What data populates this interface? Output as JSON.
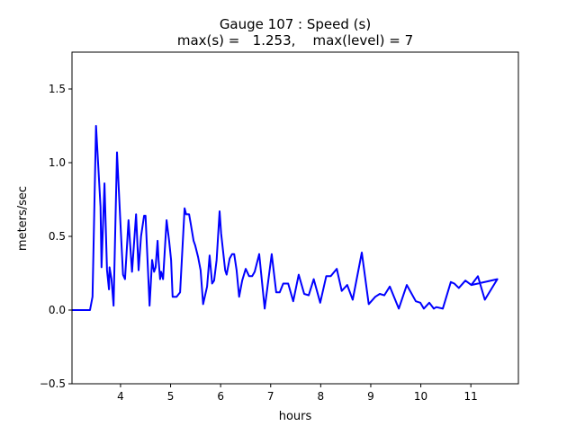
{
  "chart_data": {
    "type": "line",
    "title_line1": "Gauge 107 : Speed (s)",
    "title_line2": "max(s) =   1.253,    max(level) = 7",
    "xlabel": "hours",
    "ylabel": "meters/sec",
    "xlim": [
      3.03,
      11.95
    ],
    "ylim": [
      -0.5,
      1.75
    ],
    "xticks": [
      4,
      5,
      6,
      7,
      8,
      9,
      10,
      11
    ],
    "xtick_labels": [
      "4",
      "5",
      "6",
      "7",
      "8",
      "9",
      "10",
      "11"
    ],
    "yticks": [
      -0.5,
      0.0,
      0.5,
      1.0,
      1.5
    ],
    "ytick_labels": [
      "−0.5",
      "0.0",
      "0.5",
      "1.0",
      "1.5"
    ],
    "grid": false,
    "series": [
      {
        "name": "speed",
        "color": "#0000ff",
        "x": [
          3.03,
          3.39,
          3.44,
          3.51,
          3.6,
          3.62,
          3.68,
          3.73,
          3.77,
          3.78,
          3.82,
          3.86,
          3.93,
          4.0,
          4.05,
          4.09,
          4.16,
          4.23,
          4.31,
          4.36,
          4.41,
          4.47,
          4.5,
          4.58,
          4.63,
          4.67,
          4.7,
          4.74,
          4.76,
          4.79,
          4.81,
          4.85,
          4.92,
          4.97,
          5.01,
          5.04,
          5.12,
          5.19,
          5.28,
          5.31,
          5.37,
          5.4,
          5.46,
          5.49,
          5.55,
          5.6,
          5.65,
          5.73,
          5.78,
          5.83,
          5.87,
          5.92,
          5.98,
          6.01,
          6.09,
          6.12,
          6.18,
          6.23,
          6.27,
          6.32,
          6.37,
          6.43,
          6.5,
          6.57,
          6.63,
          6.68,
          6.77,
          6.88,
          7.02,
          7.11,
          7.18,
          7.25,
          7.35,
          7.45,
          7.56,
          7.67,
          7.76,
          7.86,
          7.99,
          8.11,
          8.2,
          8.32,
          8.42,
          8.53,
          8.64,
          8.82,
          8.96,
          9.09,
          9.18,
          9.27,
          9.38,
          9.56,
          9.72,
          9.9,
          9.99,
          10.06,
          10.17,
          10.26,
          10.31,
          10.44,
          10.6,
          10.67,
          10.76,
          10.89,
          11.01,
          11.14,
          11.28,
          11.53,
          11.01
        ],
        "y": [
          0,
          0,
          0.09,
          1.25,
          0.7,
          0.29,
          0.86,
          0.27,
          0.14,
          0.29,
          0.21,
          0.03,
          1.07,
          0.58,
          0.24,
          0.21,
          0.61,
          0.26,
          0.65,
          0.27,
          0.5,
          0.64,
          0.64,
          0.03,
          0.34,
          0.26,
          0.29,
          0.47,
          0.34,
          0.21,
          0.26,
          0.21,
          0.61,
          0.47,
          0.34,
          0.09,
          0.09,
          0.12,
          0.69,
          0.65,
          0.65,
          0.59,
          0.47,
          0.44,
          0.36,
          0.27,
          0.04,
          0.16,
          0.37,
          0.18,
          0.2,
          0.34,
          0.67,
          0.52,
          0.27,
          0.24,
          0.35,
          0.38,
          0.38,
          0.27,
          0.09,
          0.2,
          0.28,
          0.23,
          0.23,
          0.26,
          0.38,
          0.01,
          0.38,
          0.12,
          0.12,
          0.18,
          0.18,
          0.06,
          0.24,
          0.11,
          0.1,
          0.21,
          0.05,
          0.23,
          0.23,
          0.28,
          0.13,
          0.17,
          0.07,
          0.39,
          0.04,
          0.09,
          0.11,
          0.1,
          0.16,
          0.01,
          0.17,
          0.06,
          0.05,
          0.01,
          0.05,
          0.01,
          0.02,
          0.01,
          0.19,
          0.18,
          0.15,
          0.2,
          0.17,
          0.23,
          0.07,
          0.21,
          0.17
        ]
      }
    ]
  }
}
